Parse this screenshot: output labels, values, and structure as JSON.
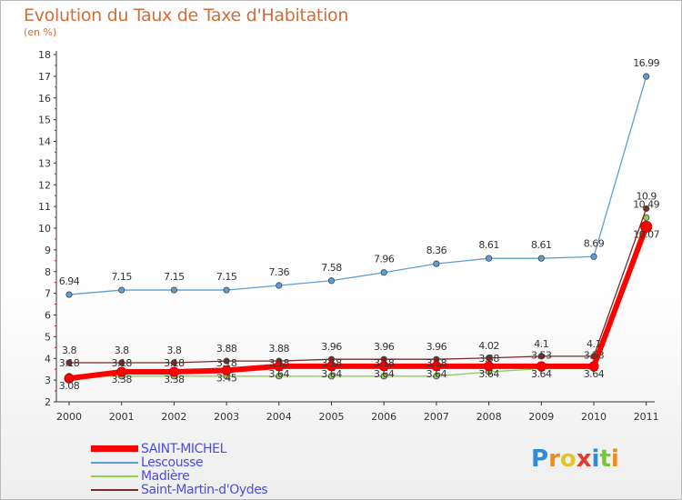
{
  "title": "Evolution du Taux de Taxe d'Habitation",
  "subtitle": "(en %)",
  "logo": "Proxiti",
  "chart_data": {
    "type": "line",
    "x": [
      "2000",
      "2001",
      "2002",
      "2003",
      "2004",
      "2005",
      "2006",
      "2007",
      "2008",
      "2009",
      "2010",
      "2011"
    ],
    "ylim": [
      2,
      18
    ],
    "yticks": [
      2,
      3,
      4,
      5,
      6,
      7,
      8,
      9,
      10,
      11,
      12,
      13,
      14,
      15,
      16,
      17,
      18
    ],
    "grid": false,
    "legend_placement": "bottom-left",
    "series": [
      {
        "name": "SAINT-MICHEL",
        "color": "#ff0000",
        "values": [
          3.08,
          3.38,
          3.38,
          3.45,
          3.64,
          3.64,
          3.64,
          3.64,
          3.64,
          3.64,
          3.64,
          10.07
        ],
        "labels": [
          "3.08",
          "3.38",
          "3.38",
          "3.45",
          "3.64",
          "3.64",
          "3.64",
          "3.64",
          "3.64",
          "3.64",
          "3.64",
          "10.07"
        ]
      },
      {
        "name": "Lescousse",
        "color": "#5e9ed6",
        "values": [
          6.94,
          7.15,
          7.15,
          7.15,
          7.36,
          7.58,
          7.96,
          8.36,
          8.61,
          8.61,
          8.69,
          16.99
        ],
        "labels": [
          "6.94",
          "7.15",
          "7.15",
          "7.15",
          "7.36",
          "7.58",
          "7.96",
          "8.36",
          "8.61",
          "8.61",
          "8.69",
          "16.99"
        ]
      },
      {
        "name": "Madière",
        "color": "#8fd04f",
        "values": [
          3.18,
          3.18,
          3.18,
          3.18,
          3.18,
          3.18,
          3.18,
          3.18,
          3.38,
          3.53,
          3.53,
          10.49
        ],
        "labels": [
          "3.18",
          "3.18",
          "3.18",
          "3.18",
          "3.18",
          "3.18",
          "3.18",
          "3.18",
          "3.38",
          "3.53",
          "3.53",
          "10.49"
        ]
      },
      {
        "name": "Saint-Martin-d'Oydes",
        "color": "#7a2a2a",
        "values": [
          3.8,
          3.8,
          3.8,
          3.88,
          3.88,
          3.96,
          3.96,
          3.96,
          4.02,
          4.1,
          4.1,
          10.9
        ],
        "labels": [
          "3.8",
          "3.8",
          "3.8",
          "3.88",
          "3.88",
          "3.96",
          "3.96",
          "3.96",
          "4.02",
          "4.1",
          "4.1",
          "10.9"
        ]
      }
    ]
  }
}
